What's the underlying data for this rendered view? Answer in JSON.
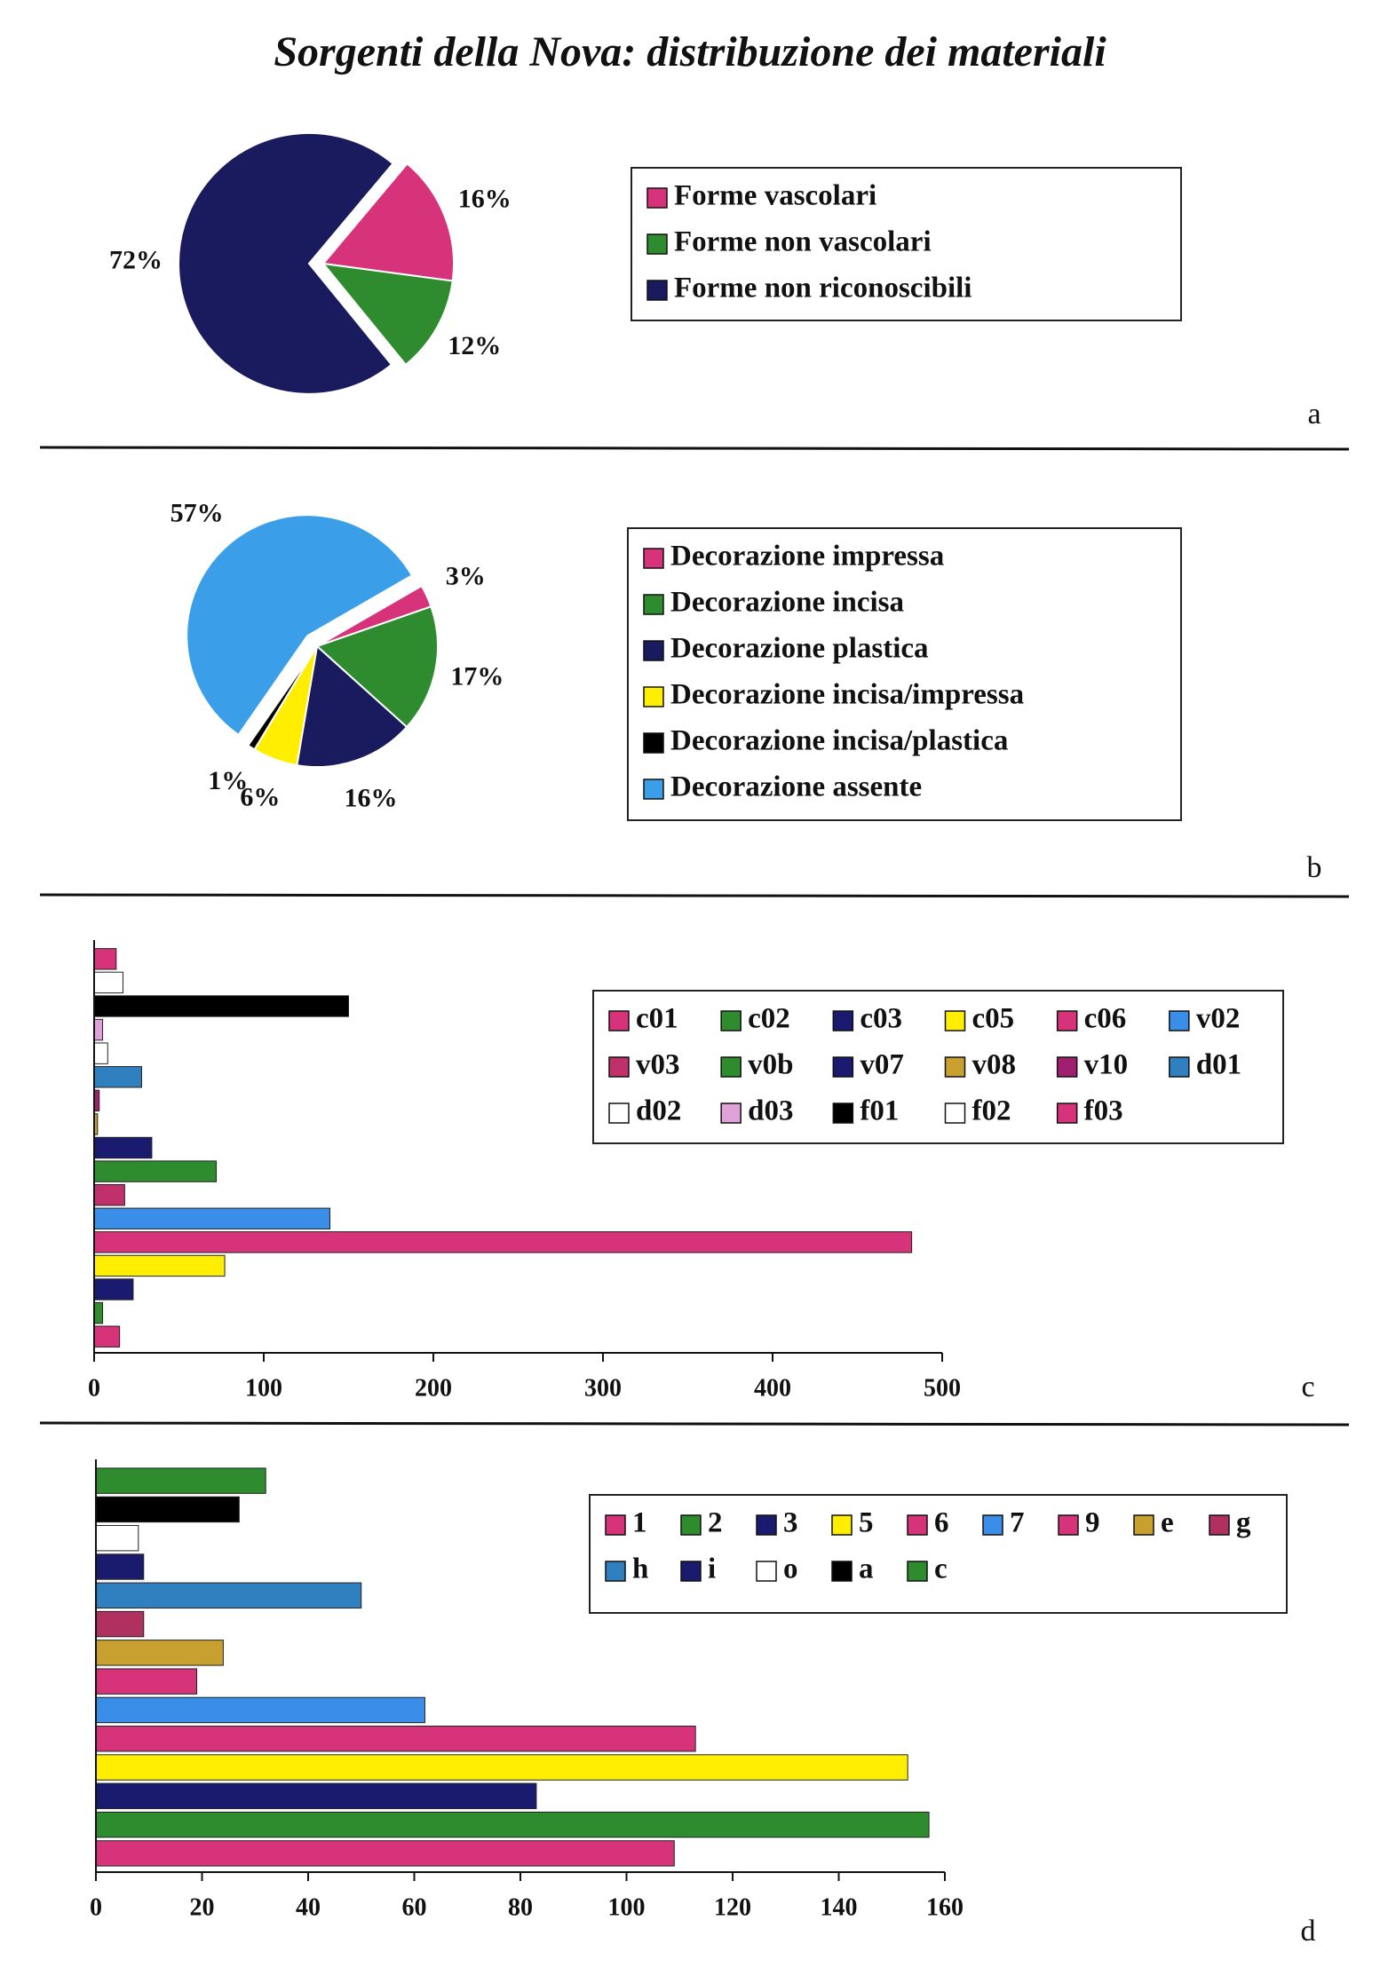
{
  "title": "Sorgenti della Nova: distribuzione dei materiali",
  "chart_data": [
    {
      "type": "pie",
      "panel_label": "a",
      "categories": [
        "Forme vascolari",
        "Forme non vascolari",
        "Forme non riconoscibili"
      ],
      "values": [
        16,
        12,
        72
      ],
      "value_labels": [
        "16%",
        "12%",
        "72%"
      ],
      "colors": [
        "#d6337a",
        "#2e8b2e",
        "#1a1a5e"
      ],
      "explode": 2
    },
    {
      "type": "pie",
      "panel_label": "b",
      "categories": [
        "Decorazione impressa",
        "Decorazione incisa",
        "Decorazione plastica",
        "Decorazione incisa/impressa",
        "Decorazione incisa/plastica",
        "Decorazione assente"
      ],
      "values": [
        3,
        17,
        16,
        6,
        1,
        57
      ],
      "value_labels": [
        "3%",
        "17%",
        "16%",
        "6%",
        "1%",
        "57%"
      ],
      "colors": [
        "#d6337a",
        "#2e8b2e",
        "#1a1a5e",
        "#ffee00",
        "#000000",
        "#3a9ee8"
      ],
      "explode": 5
    },
    {
      "type": "barh",
      "panel_label": "c",
      "xlim": [
        0,
        500
      ],
      "xticks": [
        0,
        100,
        200,
        300,
        400,
        500
      ],
      "series": [
        {
          "name": "c01",
          "color": "#d6337a",
          "values": [
            15
          ]
        },
        {
          "name": "c02",
          "color": "#2e8b2e",
          "values": [
            5
          ]
        },
        {
          "name": "c03",
          "color": "#1a1a6e",
          "values": [
            23
          ]
        },
        {
          "name": "c05",
          "color": "#ffee00",
          "values": [
            77
          ]
        },
        {
          "name": "c06",
          "color": "#d6337a",
          "values": [
            482
          ]
        },
        {
          "name": "v02",
          "color": "#3a8ee8",
          "values": [
            139
          ]
        },
        {
          "name": "v03",
          "color": "#c0306a",
          "values": [
            18
          ]
        },
        {
          "name": "v0b",
          "color": "#2e8b2e",
          "values": [
            72
          ]
        },
        {
          "name": "v07",
          "color": "#1a1a6e",
          "values": [
            34
          ]
        },
        {
          "name": "v08",
          "color": "#c8a030",
          "values": [
            2
          ]
        },
        {
          "name": "v10",
          "color": "#a02070",
          "values": [
            3
          ]
        },
        {
          "name": "d01",
          "color": "#3080c0",
          "values": [
            28
          ]
        },
        {
          "name": "d02",
          "color": "#ffffff",
          "values": [
            8
          ]
        },
        {
          "name": "d03",
          "color": "#e0a0d8",
          "values": [
            5
          ]
        },
        {
          "name": "f01",
          "color": "#000000",
          "values": [
            150
          ]
        },
        {
          "name": "f02",
          "color": "#ffffff",
          "values": [
            17
          ]
        },
        {
          "name": "f03",
          "color": "#d6337a",
          "values": [
            13
          ]
        }
      ]
    },
    {
      "type": "barh",
      "panel_label": "d",
      "xlim": [
        0,
        160
      ],
      "xticks": [
        0,
        20,
        40,
        60,
        80,
        100,
        120,
        140,
        160
      ],
      "series": [
        {
          "name": "1",
          "color": "#d6337a",
          "values": [
            109
          ]
        },
        {
          "name": "2",
          "color": "#2e8b2e",
          "values": [
            157
          ]
        },
        {
          "name": "3",
          "color": "#1a1a6e",
          "values": [
            83
          ]
        },
        {
          "name": "5",
          "color": "#ffee00",
          "values": [
            153
          ]
        },
        {
          "name": "6",
          "color": "#d6337a",
          "values": [
            113
          ]
        },
        {
          "name": "7",
          "color": "#3a8ee8",
          "values": [
            62
          ]
        },
        {
          "name": "9",
          "color": "#d6337a",
          "values": [
            19
          ]
        },
        {
          "name": "e",
          "color": "#c8a030",
          "values": [
            24
          ]
        },
        {
          "name": "g",
          "color": "#b03060",
          "values": [
            9
          ]
        },
        {
          "name": "h",
          "color": "#3080c0",
          "values": [
            50
          ]
        },
        {
          "name": "i",
          "color": "#1a1a6e",
          "values": [
            9
          ]
        },
        {
          "name": "o",
          "color": "#ffffff",
          "values": [
            8
          ]
        },
        {
          "name": "a",
          "color": "#000000",
          "values": [
            27
          ]
        },
        {
          "name": "c",
          "color": "#2e8b2e",
          "values": [
            32
          ]
        }
      ]
    }
  ]
}
